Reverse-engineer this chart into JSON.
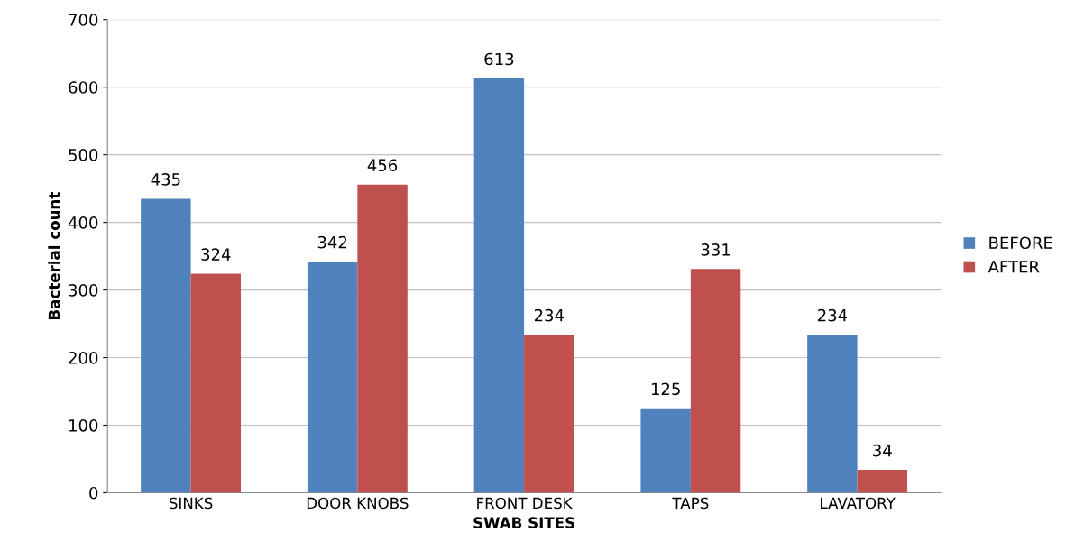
{
  "chart_data": {
    "type": "bar",
    "xlabel": "SWAB SITES",
    "ylabel": "Bacterial count",
    "categories": [
      "SINKS",
      "DOOR KNOBS",
      "FRONT DESK",
      "TAPS",
      "LAVATORY"
    ],
    "series": [
      {
        "name": "BEFORE",
        "color": "#4f81bd",
        "values": [
          435,
          342,
          613,
          125,
          234
        ]
      },
      {
        "name": "AFTER",
        "color": "#c0504d",
        "values": [
          324,
          456,
          234,
          331,
          34
        ]
      }
    ],
    "ylim": [
      0,
      700
    ],
    "yticks": [
      0,
      100,
      200,
      300,
      400,
      500,
      600,
      700
    ],
    "grid": "y",
    "legend": "right",
    "data_labels": true
  }
}
